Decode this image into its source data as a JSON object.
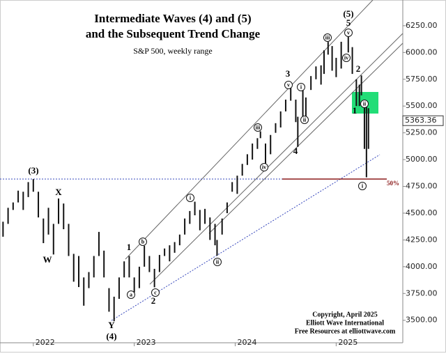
{
  "chart_data": {
    "type": "range",
    "title": "Intermediate Waves (4) and (5)",
    "title_line2": "and the Subsequent Trend Change",
    "subtitle": "S&P 500, weekly range",
    "x": [
      2021.7,
      2021.75,
      2021.8,
      2021.85,
      2021.9,
      2021.95,
      2022.0,
      2022.05,
      2022.1,
      2022.15,
      2022.2,
      2022.25,
      2022.3,
      2022.35,
      2022.4,
      2022.45,
      2022.5,
      2022.55,
      2022.6,
      2022.65,
      2022.7,
      2022.75,
      2022.8,
      2022.85,
      2022.9,
      2022.95,
      2023.0,
      2023.05,
      2023.1,
      2023.15,
      2023.2,
      2023.25,
      2023.3,
      2023.35,
      2023.4,
      2023.45,
      2023.5,
      2023.55,
      2023.6,
      2023.65,
      2023.7,
      2023.75,
      2023.8,
      2023.82,
      2023.87,
      2023.92,
      2023.97,
      2024.02,
      2024.07,
      2024.12,
      2024.17,
      2024.22,
      2024.25,
      2024.3,
      2024.35,
      2024.4,
      2024.45,
      2024.5,
      2024.55,
      2024.6,
      2024.62,
      2024.67,
      2024.7,
      2024.75,
      2024.8,
      2024.85,
      2024.88,
      2024.92,
      2024.96,
      2025.0,
      2025.05,
      2025.12,
      2025.16,
      2025.2,
      2025.23,
      2025.25,
      2025.28,
      2025.3,
      2025.32
    ],
    "high": [
      4420,
      4550,
      4600,
      4710,
      4700,
      4790,
      4818,
      4700,
      4450,
      4550,
      4400,
      4637,
      4590,
      4400,
      4120,
      4100,
      3900,
      3950,
      4100,
      4325,
      4150,
      3800,
      3720,
      3900,
      4050,
      4100,
      3900,
      4000,
      4195,
      4100,
      3980,
      4110,
      4170,
      4200,
      4230,
      4300,
      4450,
      4520,
      4607,
      4530,
      4540,
      4460,
      4400,
      4250,
      4450,
      4600,
      4790,
      4850,
      4960,
      5050,
      5150,
      5200,
      5264,
      5150,
      5230,
      5340,
      5450,
      5560,
      5669,
      5560,
      5400,
      5650,
      5580,
      5780,
      5870,
      5880,
      6020,
      6099,
      6060,
      5950,
      6100,
      6147,
      6050,
      5750,
      5700,
      5786,
      5550,
      5500,
      5480
    ],
    "low": [
      4280,
      4400,
      4530,
      4600,
      4530,
      4650,
      4700,
      4460,
      4220,
      4300,
      4114,
      4400,
      4350,
      4100,
      3860,
      3810,
      3636,
      3800,
      3900,
      4100,
      3900,
      3580,
      3491,
      3700,
      3900,
      3900,
      3760,
      3800,
      4000,
      3950,
      3808,
      3950,
      4100,
      4050,
      4130,
      4200,
      4300,
      4400,
      4480,
      4340,
      4400,
      4250,
      4200,
      4103,
      4300,
      4500,
      4700,
      4680,
      4850,
      4950,
      5000,
      5100,
      5200,
      4953,
      5050,
      5250,
      5300,
      5450,
      5550,
      5350,
      5119,
      5400,
      5402,
      5650,
      5750,
      5700,
      5800,
      5980,
      5830,
      5770,
      5850,
      6000,
      5800,
      5500,
      5500,
      5600,
      5100,
      4835,
      5100
    ],
    "color": "#111111",
    "xlim": [
      2021.67,
      2025.66
    ],
    "xticks": [
      {
        "value": 2022,
        "label": "2022"
      },
      {
        "value": 2023,
        "label": "2023"
      },
      {
        "value": 2024,
        "label": "2024"
      },
      {
        "value": 2025,
        "label": "2025"
      }
    ],
    "ylim": [
      3290,
      6490
    ],
    "yticks": [
      {
        "value": 3500,
        "label": "3500.00"
      },
      {
        "value": 3750,
        "label": "3750.00"
      },
      {
        "value": 4000,
        "label": "4000.00"
      },
      {
        "value": 4250,
        "label": "4250.00"
      },
      {
        "value": 4500,
        "label": "4500.00"
      },
      {
        "value": 4750,
        "label": "4750.00"
      },
      {
        "value": 5000,
        "label": "5000.00"
      },
      {
        "value": 5250,
        "label": "5250.00"
      },
      {
        "value": 5500,
        "label": "5500.00"
      },
      {
        "value": 5750,
        "label": "5750.00"
      },
      {
        "value": 6000,
        "label": "6000.00"
      },
      {
        "value": 6250,
        "label": "6250.00"
      }
    ],
    "last_price": 5363.36,
    "wave_labels": [
      "(3)",
      "X",
      "W",
      "Y",
      "(4)",
      "1",
      "2",
      "3",
      "4",
      "5",
      "(5)",
      "1",
      "2"
    ],
    "circled_labels": [
      "a",
      "b",
      "c",
      "i",
      "ii",
      "iii",
      "iv",
      "v",
      "i",
      "ii",
      "iii",
      "iv",
      "v",
      "ii",
      "i"
    ],
    "level_label": "50%",
    "copyright": [
      "Copyright, April 2025",
      "Elliott Wave International",
      "Free Resources at elliottwave.com"
    ]
  }
}
